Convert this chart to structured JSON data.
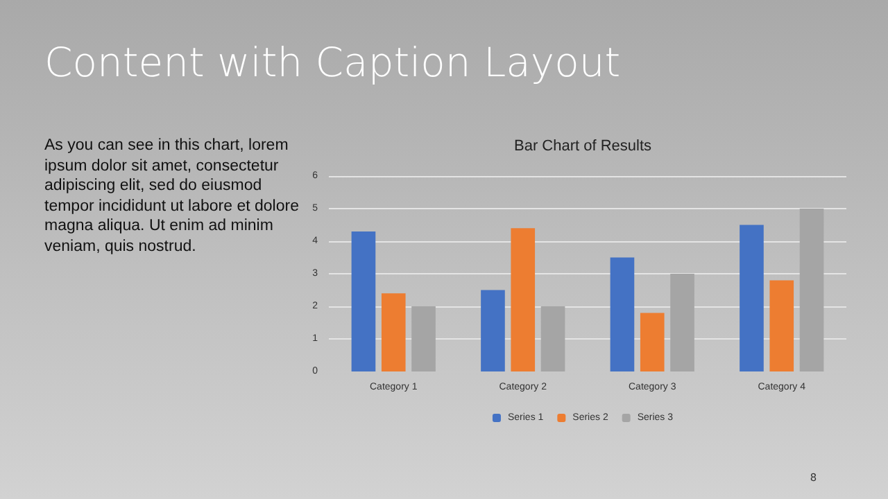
{
  "chart_data": {
    "type": "bar",
    "title": "Content with Caption Layout",
    "subtitle": "Bar Chart of Results",
    "categories": [
      "Category 1",
      "Category 2",
      "Category 3",
      "Category 4"
    ],
    "series": [
      {
        "name": "Series 1",
        "color": "#4472c4",
        "values": [
          4.3,
          2.5,
          3.5,
          4.5
        ]
      },
      {
        "name": "Series 2",
        "color": "#ed7d31",
        "values": [
          2.4,
          4.4,
          1.8,
          2.8
        ]
      },
      {
        "name": "Series 3",
        "color": "#a5a5a5",
        "values": [
          2,
          2,
          3,
          5
        ]
      }
    ],
    "ylim": [
      0,
      6
    ],
    "yticks": [
      0,
      1,
      2,
      3,
      4,
      5,
      6
    ],
    "grid": "y",
    "legend": "bottom",
    "annotations": [
      "As you can see in this chart, lorem ipsum dolor sit amet, consectetur adipiscing elit, sed do eiusmod tempor incididunt ut labore et dolore magna aliqua. Ut enim ad minim veniam, quis nostrud.",
      "8"
    ]
  }
}
